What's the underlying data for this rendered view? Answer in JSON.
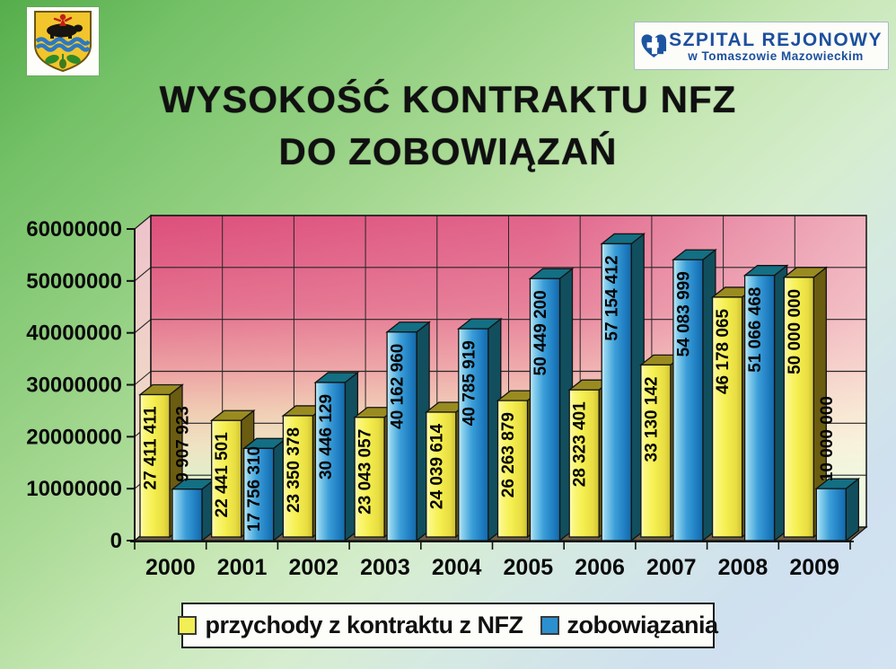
{
  "header": {
    "coat_of_arms_icon": "tomaszow-county-coat-of-arms",
    "hospital_logo": {
      "icon": "heart-cross-icon",
      "name": "SZPITAL REJONOWY",
      "subtitle": "w Tomaszowie Mazowieckim",
      "text_color": "#1c4f9e"
    },
    "title_line1": "WYSOKOŚĆ KONTRAKTU NFZ",
    "title_line2": "DO ZOBOWIĄZAŃ"
  },
  "chart_data": {
    "type": "bar",
    "style": "3d",
    "title": "WYSOKOŚĆ KONTRAKTU NFZ DO ZOBOWIĄZAŃ",
    "categories": [
      "2000",
      "2001",
      "2002",
      "2003",
      "2004",
      "2005",
      "2006",
      "2007",
      "2008",
      "2009"
    ],
    "series": [
      {
        "name": "przychody z kontraktu z NFZ",
        "color": "#f4ef52",
        "values": [
          27411411,
          22441501,
          23350378,
          23043057,
          24039614,
          26263879,
          28323401,
          33130142,
          46178065,
          50000000
        ],
        "labels": [
          "27 411 411",
          "22 441 501",
          "23 350 378",
          "23 043 057",
          "24 039 614",
          "26 263 879",
          "28 323 401",
          "33 130 142",
          "46 178 065",
          "50 000 000"
        ]
      },
      {
        "name": "zobowiązania",
        "color": "#2e93d2",
        "values": [
          9907923,
          17756310,
          30446129,
          40162960,
          40785919,
          50449200,
          57154412,
          54083999,
          51066468,
          10000000
        ],
        "labels": [
          "9 907 923",
          "17 756 310",
          "30 446 129",
          "40 162 960",
          "40 785 919",
          "50 449 200",
          "57 154 412",
          "54 083 999",
          "51 066 468",
          "10 000 000"
        ]
      }
    ],
    "ylim": [
      0,
      60000000
    ],
    "yticks": [
      0,
      10000000,
      20000000,
      30000000,
      40000000,
      50000000,
      60000000
    ],
    "ytick_labels": [
      "0",
      "10000000",
      "20000000",
      "30000000",
      "40000000",
      "50000000",
      "60000000"
    ],
    "grid": true,
    "legend_position": "bottom",
    "colors": {
      "wall_top_pink": "#dd4f7c",
      "wall_bottom_green": "#d5edd0",
      "floor_brown": "#6b5e48",
      "bar_yellow": "#f4ef52",
      "bar_blue": "#2e93d2"
    }
  },
  "legend": {
    "items": [
      {
        "label": "przychody z kontraktu z NFZ",
        "color": "#f2ee55"
      },
      {
        "label": "zobowiązania",
        "color": "#2b90d0"
      }
    ]
  }
}
